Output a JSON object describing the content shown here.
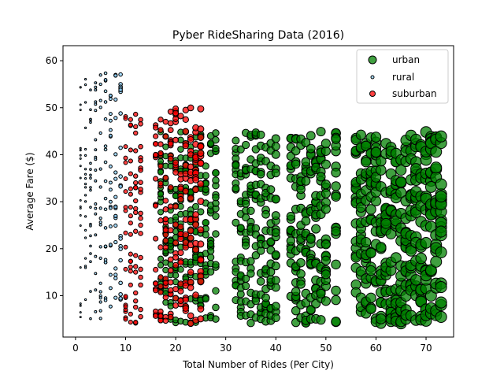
{
  "chart_data": {
    "type": "scatter",
    "title": "Pyber RideSharing Data (2016)",
    "xlabel": "Total Number of Rides (Per City)",
    "ylabel": "Average Fare ($)",
    "xlim": [
      -2.5,
      75.5
    ],
    "ylim": [
      1.2,
      63.2
    ],
    "xticks": [
      0,
      10,
      20,
      30,
      40,
      50,
      60,
      70
    ],
    "yticks": [
      10,
      20,
      30,
      40,
      50,
      60
    ],
    "grid": false,
    "legend_position": "top-right",
    "legend": [
      {
        "name": "urban",
        "color": "#008000"
      },
      {
        "name": "rural",
        "color": "#87CEFA"
      },
      {
        "name": "suburban",
        "color": "#FF0000"
      }
    ],
    "series": [
      {
        "name": "urban",
        "color": "#008000",
        "edgecolor": "#000000",
        "x_columns": [
          17,
          18,
          19,
          20,
          21,
          22,
          23,
          24,
          25,
          26,
          27,
          28,
          32,
          33,
          34,
          35,
          36,
          37,
          38,
          39,
          40,
          43,
          44,
          45,
          46,
          47,
          48,
          49,
          50,
          52,
          56,
          57,
          58,
          59,
          60,
          61,
          62,
          63,
          64,
          65,
          66,
          67,
          68,
          69,
          70,
          71,
          72,
          73
        ],
        "y_range": [
          4,
          45
        ],
        "note_points_per_column": 20
      },
      {
        "name": "rural",
        "color": "#87CEFA",
        "edgecolor": "#000000",
        "x_columns": [
          1,
          2,
          3,
          4,
          5,
          6,
          7,
          8,
          9
        ],
        "y_range": [
          5,
          59
        ],
        "note_points_per_column": 20
      },
      {
        "name": "suburban",
        "color": "#FF0000",
        "edgecolor": "#000000",
        "x_columns": [
          10,
          11,
          12,
          13,
          16,
          17,
          18,
          19,
          20,
          21,
          22,
          23,
          24,
          25
        ],
        "y_range": [
          4,
          50
        ],
        "note_points_per_column": 20
      }
    ]
  }
}
